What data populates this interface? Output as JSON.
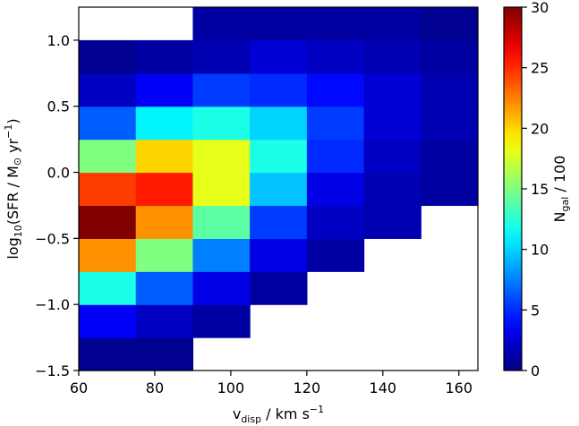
{
  "chart_data": {
    "type": "heatmap",
    "title": "",
    "xlabel": {
      "main": "v",
      "sub": "disp",
      "rest": " / km s",
      "sup": "−1"
    },
    "ylabel": {
      "pre": "log",
      "sub": "10",
      "mid": "(SFR / M",
      "sun": "⊙",
      "rest": " yr",
      "sup": "−1",
      "post": ")"
    },
    "colorbar_label": {
      "main": "N",
      "sub": "gal",
      "rest": " / 100"
    },
    "colormap": "jet",
    "xlim": [
      60,
      165
    ],
    "ylim": [
      -1.5,
      1.25
    ],
    "clim": [
      0,
      30
    ],
    "x_edges": [
      60,
      75,
      90,
      105,
      120,
      135,
      150,
      165
    ],
    "y_edges": [
      -1.5,
      -1.25,
      -1.0,
      -0.75,
      -0.5,
      -0.25,
      0.0,
      0.25,
      0.5,
      0.75,
      1.0,
      1.25
    ],
    "x_ticks": [
      60,
      80,
      100,
      120,
      140,
      160
    ],
    "x_tick_labels": [
      "60",
      "80",
      "100",
      "120",
      "140",
      "160"
    ],
    "y_ticks": [
      -1.5,
      -1.0,
      -0.5,
      0.0,
      0.5,
      1.0
    ],
    "y_tick_labels": [
      "−1.5",
      "−1.0",
      "−0.5",
      "0.0",
      "0.5",
      "1.0"
    ],
    "cbar_ticks": [
      0,
      5,
      10,
      15,
      20,
      25,
      30
    ],
    "cbar_tick_labels": [
      "0",
      "5",
      "10",
      "15",
      "20",
      "25",
      "30"
    ],
    "values_rows_bottom_to_top": [
      [
        0.5,
        0.5,
        null,
        null,
        null,
        null,
        null
      ],
      [
        3.5,
        2,
        1,
        null,
        null,
        null,
        null
      ],
      [
        12,
        6.5,
        3,
        1,
        null,
        null,
        null
      ],
      [
        22,
        15,
        7.5,
        3,
        1,
        null,
        null
      ],
      [
        30,
        22,
        14,
        5.5,
        2,
        1.5,
        null
      ],
      [
        24.5,
        25.5,
        18,
        9.5,
        3,
        1.5,
        1
      ],
      [
        15,
        20,
        18,
        12,
        5,
        2,
        1
      ],
      [
        6.5,
        11,
        12,
        10,
        5.5,
        2.5,
        1.5
      ],
      [
        2,
        3.5,
        5.5,
        5,
        4,
        2.5,
        1.5
      ],
      [
        0.5,
        1,
        1.5,
        2.5,
        2,
        1.5,
        1
      ],
      [
        null,
        null,
        1,
        1,
        1,
        1,
        0.5
      ]
    ]
  }
}
